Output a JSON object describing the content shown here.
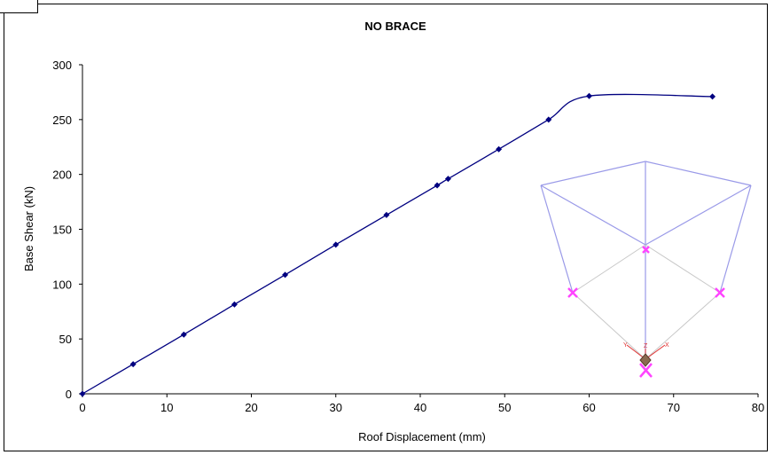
{
  "chart_data": {
    "type": "scatter",
    "title": "NO BRACE",
    "xlabel": "Roof Displacement (mm)",
    "ylabel": "Base Shear (kN)",
    "xlim": [
      0,
      80
    ],
    "ylim": [
      0,
      300
    ],
    "x_ticks": [
      "0",
      "10",
      "20",
      "30",
      "40",
      "50",
      "60",
      "70",
      "80"
    ],
    "y_ticks": [
      "0",
      "50",
      "100",
      "150",
      "200",
      "250",
      "300"
    ],
    "grid": false,
    "legend": "none",
    "line_style": "smoothed line with markers",
    "series": [
      {
        "color": "#000080",
        "marker": "diamond",
        "x": [
          0,
          6,
          12,
          18,
          24,
          30,
          36,
          42,
          43.3,
          49.3,
          55.2,
          60,
          74.6
        ],
        "y": [
          0,
          27,
          54,
          81.5,
          108.5,
          136,
          163,
          190,
          196,
          223,
          250,
          271.5,
          271
        ]
      }
    ],
    "inset": {
      "description_icon": "3d-frame-model-icon",
      "axis_letters": [
        "Y",
        "Z",
        "X"
      ],
      "frame_color": "#9a9ae8",
      "support_color": "#ff44ff"
    }
  }
}
